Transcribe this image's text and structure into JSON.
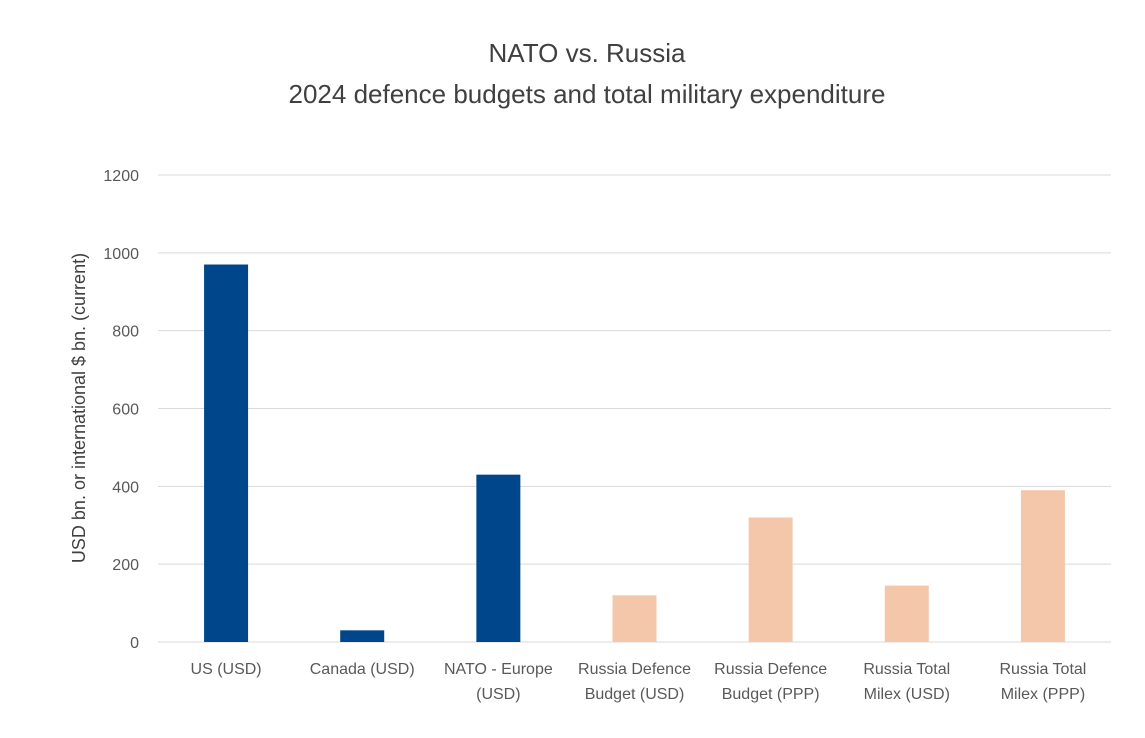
{
  "chart_data": {
    "type": "bar",
    "title": "NATO vs. Russia",
    "subtitle": "2024 defence budgets and total military expenditure",
    "xlabel": "",
    "ylabel": "USD bn. or international $ bn. (current)",
    "ylim": [
      0,
      1200
    ],
    "yticks": [
      "0",
      "200",
      "400",
      "600",
      "800",
      "1000",
      "1200"
    ],
    "grid": true,
    "categories": [
      [
        "US (USD)"
      ],
      [
        "Canada (USD)"
      ],
      [
        "NATO - Europe",
        "(USD)"
      ],
      [
        "Russia Defence",
        "Budget (USD)"
      ],
      [
        "Russia Defence",
        "Budget (PPP)"
      ],
      [
        "Russia Total",
        "Milex (USD)"
      ],
      [
        "Russia Total",
        "Milex (PPP)"
      ]
    ],
    "values": [
      970,
      30,
      430,
      120,
      320,
      145,
      390
    ],
    "colors": [
      "#00468b",
      "#00468b",
      "#00468b",
      "#f4c7ab",
      "#f4c7ab",
      "#f4c7ab",
      "#f4c7ab"
    ]
  }
}
